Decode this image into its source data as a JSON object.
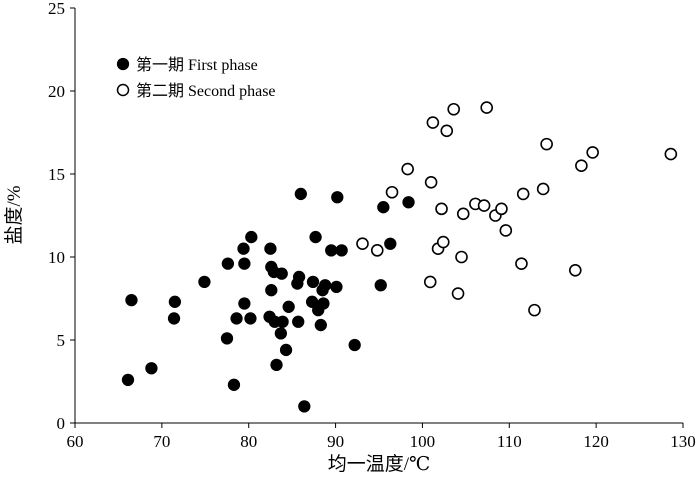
{
  "chart_data": {
    "type": "scatter",
    "title": "",
    "xlabel": "均一温度/℃",
    "ylabel": "盐度/%",
    "xlim": [
      60,
      130
    ],
    "ylim": [
      0,
      25
    ],
    "xticks": [
      "60",
      "70",
      "80",
      "90",
      "100",
      "110",
      "120",
      "130"
    ],
    "yticks": [
      "0",
      "5",
      "10",
      "15",
      "20",
      "25"
    ],
    "grid": false,
    "legend_position": "top-left",
    "series": [
      {
        "name": "第一期  First phase",
        "marker": "filled-circle",
        "color": "#000000",
        "points": [
          [
            66.1,
            2.6
          ],
          [
            66.5,
            7.4
          ],
          [
            68.8,
            3.3
          ],
          [
            71.4,
            6.3
          ],
          [
            71.5,
            7.3
          ],
          [
            74.9,
            8.5
          ],
          [
            77.5,
            5.1
          ],
          [
            77.6,
            9.6
          ],
          [
            78.3,
            2.3
          ],
          [
            78.6,
            6.3
          ],
          [
            79.4,
            10.5
          ],
          [
            79.5,
            9.6
          ],
          [
            79.5,
            7.2
          ],
          [
            80.2,
            6.3
          ],
          [
            80.3,
            11.2
          ],
          [
            82.4,
            6.4
          ],
          [
            82.5,
            10.5
          ],
          [
            82.6,
            9.4
          ],
          [
            82.6,
            8.0
          ],
          [
            82.9,
            9.1
          ],
          [
            83.0,
            6.1
          ],
          [
            83.2,
            3.5
          ],
          [
            83.7,
            5.4
          ],
          [
            83.8,
            9.0
          ],
          [
            83.9,
            6.1
          ],
          [
            84.3,
            4.4
          ],
          [
            84.6,
            7.0
          ],
          [
            85.6,
            8.4
          ],
          [
            85.7,
            6.1
          ],
          [
            85.8,
            8.8
          ],
          [
            86.0,
            13.8
          ],
          [
            86.4,
            1.0
          ],
          [
            87.3,
            7.3
          ],
          [
            87.4,
            8.5
          ],
          [
            87.7,
            11.2
          ],
          [
            88.0,
            6.8
          ],
          [
            88.3,
            5.9
          ],
          [
            88.5,
            8.0
          ],
          [
            88.6,
            7.2
          ],
          [
            88.8,
            8.3
          ],
          [
            89.5,
            10.4
          ],
          [
            90.1,
            8.2
          ],
          [
            90.2,
            13.6
          ],
          [
            90.7,
            10.4
          ],
          [
            92.2,
            4.7
          ],
          [
            95.2,
            8.3
          ],
          [
            95.5,
            13.0
          ],
          [
            96.3,
            10.8
          ],
          [
            98.4,
            13.3
          ]
        ]
      },
      {
        "name": "第二期  Second phase",
        "marker": "open-circle",
        "color": "#000000",
        "points": [
          [
            93.1,
            10.8
          ],
          [
            94.8,
            10.4
          ],
          [
            96.5,
            13.9
          ],
          [
            98.3,
            15.3
          ],
          [
            100.9,
            8.5
          ],
          [
            101.0,
            14.5
          ],
          [
            101.2,
            18.1
          ],
          [
            101.8,
            10.5
          ],
          [
            102.2,
            12.9
          ],
          [
            102.4,
            10.9
          ],
          [
            102.8,
            17.6
          ],
          [
            103.6,
            18.9
          ],
          [
            104.1,
            7.8
          ],
          [
            104.5,
            10.0
          ],
          [
            104.7,
            12.6
          ],
          [
            106.1,
            13.2
          ],
          [
            107.1,
            13.1
          ],
          [
            107.4,
            19.0
          ],
          [
            108.4,
            12.5
          ],
          [
            109.1,
            12.9
          ],
          [
            109.6,
            11.6
          ],
          [
            111.4,
            9.6
          ],
          [
            111.6,
            13.8
          ],
          [
            112.9,
            6.8
          ],
          [
            113.9,
            14.1
          ],
          [
            114.3,
            16.8
          ],
          [
            117.6,
            9.2
          ],
          [
            118.3,
            15.5
          ],
          [
            119.6,
            16.3
          ],
          [
            128.6,
            16.2
          ]
        ]
      }
    ]
  }
}
